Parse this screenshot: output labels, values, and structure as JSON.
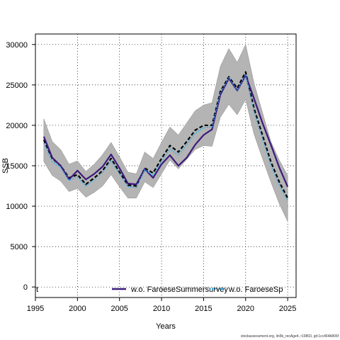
{
  "footer_text": "stockassessment.org, lin5b_recAge4, r19803, git:1cc464b806f",
  "chart_data": {
    "type": "line",
    "xlabel": "Years",
    "ylabel": "SSB",
    "xlim": [
      1995,
      2026
    ],
    "ylim": [
      -1300,
      31300
    ],
    "xticks": [
      1995,
      2000,
      2005,
      2010,
      2015,
      2020,
      2025
    ],
    "yticks": [
      0,
      5000,
      10000,
      15000,
      20000,
      25000,
      30000
    ],
    "grid": true,
    "years": [
      1996,
      1997,
      1998,
      1999,
      2000,
      2001,
      2002,
      2003,
      2004,
      2005,
      2006,
      2007,
      2008,
      2009,
      2010,
      2011,
      2012,
      2013,
      2014,
      2015,
      2016,
      2017,
      2018,
      2019,
      2020,
      2021,
      2022,
      2023,
      2024,
      2025
    ],
    "band_upper": [
      20800,
      18000,
      17000,
      15200,
      15600,
      14300,
      15200,
      16400,
      17900,
      16100,
      14200,
      14000,
      16700,
      15900,
      17900,
      19800,
      18800,
      20300,
      21800,
      22500,
      22800,
      27300,
      29500,
      27800,
      30000,
      25200,
      21600,
      18000,
      15700,
      13800
    ],
    "band_lower": [
      15500,
      13800,
      13100,
      11800,
      12200,
      11100,
      11700,
      12500,
      13900,
      12400,
      11000,
      11000,
      13000,
      12300,
      14000,
      15700,
      14600,
      15800,
      17000,
      17500,
      17400,
      21000,
      22600,
      21300,
      23200,
      18900,
      15900,
      13000,
      10300,
      8100
    ],
    "series": [
      {
        "name": "",
        "color": "#000000",
        "dash": "5,3",
        "width": 2.2,
        "values": [
          18200,
          15900,
          15000,
          13500,
          13900,
          12700,
          13500,
          14400,
          15900,
          14200,
          12600,
          12500,
          14700,
          14100,
          15900,
          17500,
          16700,
          18000,
          19400,
          20000,
          20000,
          24200,
          26000,
          24600,
          26600,
          22100,
          18800,
          15500,
          13000,
          11000
        ]
      },
      {
        "name": "w.o. FaroeseSummersurvey",
        "color": "#3d1a7a",
        "dash": "",
        "width": 2.2,
        "values": [
          18600,
          16000,
          15000,
          13300,
          14400,
          13300,
          14000,
          14900,
          16400,
          14700,
          12800,
          12700,
          14600,
          13500,
          15200,
          16300,
          15000,
          16000,
          17600,
          18800,
          19500,
          23800,
          25800,
          24300,
          26200,
          23300,
          20300,
          17600,
          14800,
          12400
        ]
      },
      {
        "name": "w.o. FaroeseSpringsurvey",
        "color": "#22aaee",
        "dash": "1.5,2",
        "width": 1.5,
        "values": [
          17800,
          15500,
          14800,
          13200,
          13600,
          12500,
          13300,
          14200,
          15600,
          14000,
          12400,
          12300,
          14500,
          13800,
          15500,
          17100,
          16300,
          17600,
          19000,
          19700,
          19800,
          24000,
          25900,
          24300,
          26300,
          21700,
          18300,
          15100,
          12600,
          10700
        ]
      }
    ],
    "legend": {
      "placement": "bottom",
      "entries": [
        {
          "label": "t",
          "color": "#000000",
          "dash": "5,3"
        },
        {
          "label": "w.o. FaroeseSummersurvey",
          "color": "#3d1a7a",
          "dash": ""
        },
        {
          "label": "w.o. FaroeseSp",
          "color": "#22aaee",
          "dash": "1.5,2"
        }
      ]
    }
  }
}
